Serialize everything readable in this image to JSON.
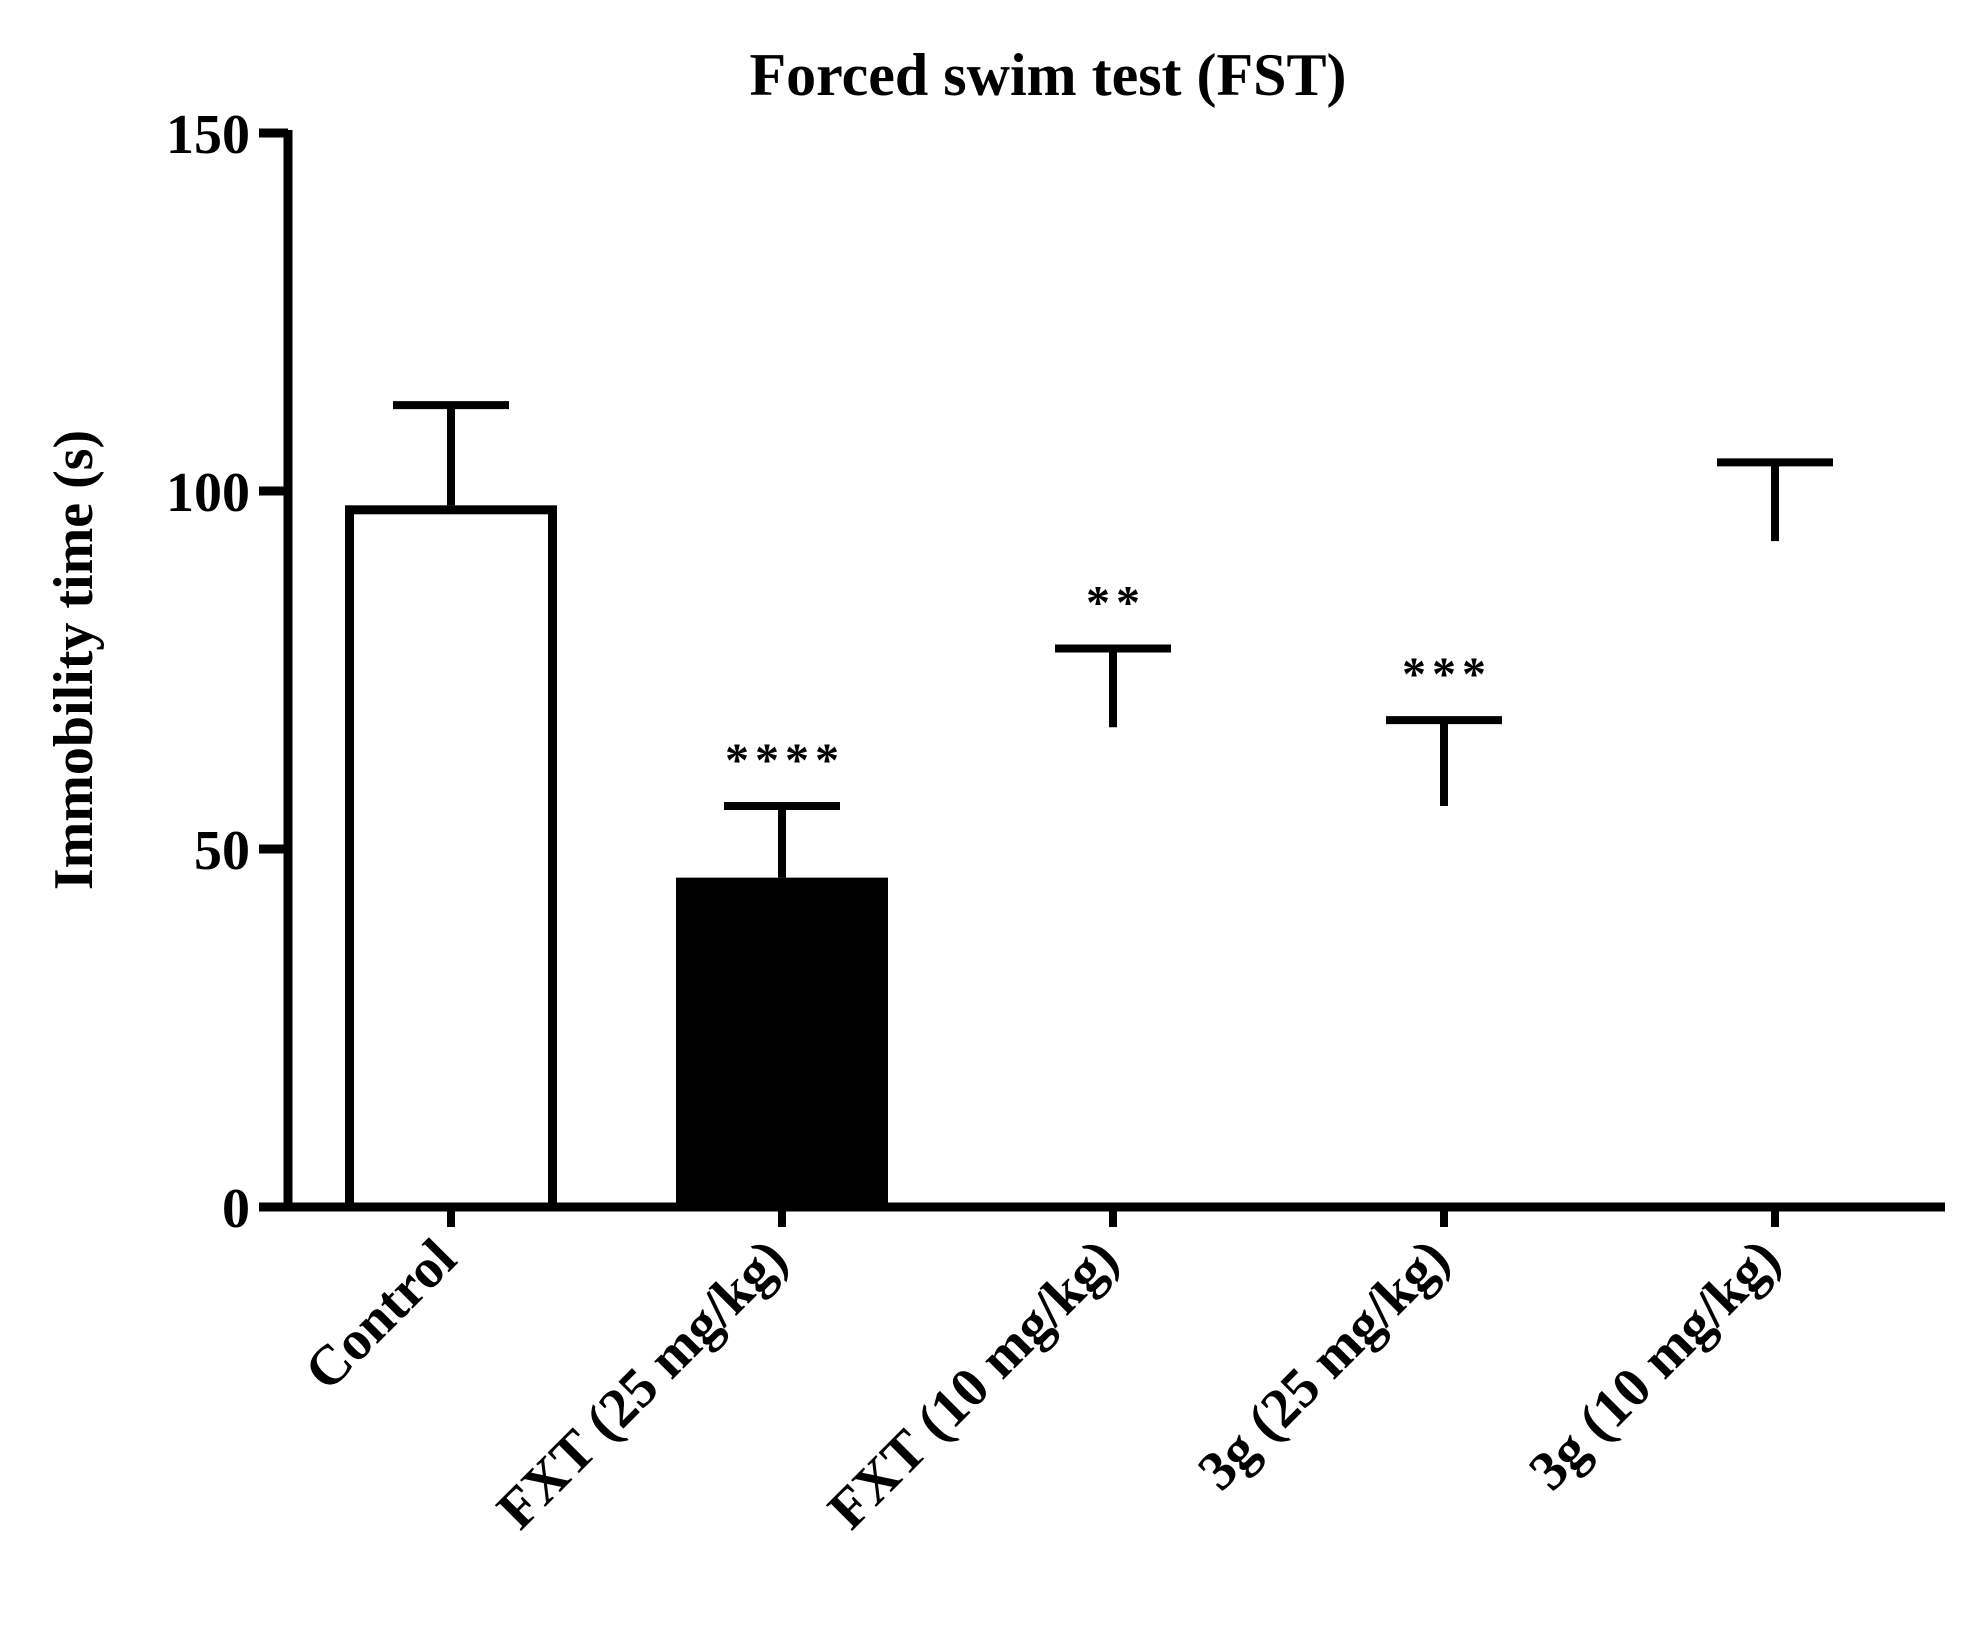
{
  "chart_data": {
    "type": "bar",
    "title": "Forced swim test (FST)",
    "xlabel": "",
    "ylabel": "Immobility time (s)",
    "ylim": [
      0,
      150
    ],
    "yticks": [
      0,
      50,
      100,
      150
    ],
    "ytick_labels": [
      "0",
      "50",
      "100",
      "150"
    ],
    "grid": false,
    "categories": [
      "Control",
      "FXT (25 mg/kg)",
      "FXT (10 mg/kg)",
      "3g (25 mg/kg)",
      "3g (10 mg/kg)"
    ],
    "values": [
      98,
      46,
      67,
      56,
      93
    ],
    "errors": [
      14,
      10,
      11,
      12,
      11
    ],
    "bar_styles": [
      "outline",
      "filled",
      "none",
      "none",
      "none"
    ],
    "significance": [
      "",
      "****",
      "**",
      "***",
      ""
    ],
    "colors": {
      "ink": "#000000",
      "background": "#ffffff"
    }
  }
}
